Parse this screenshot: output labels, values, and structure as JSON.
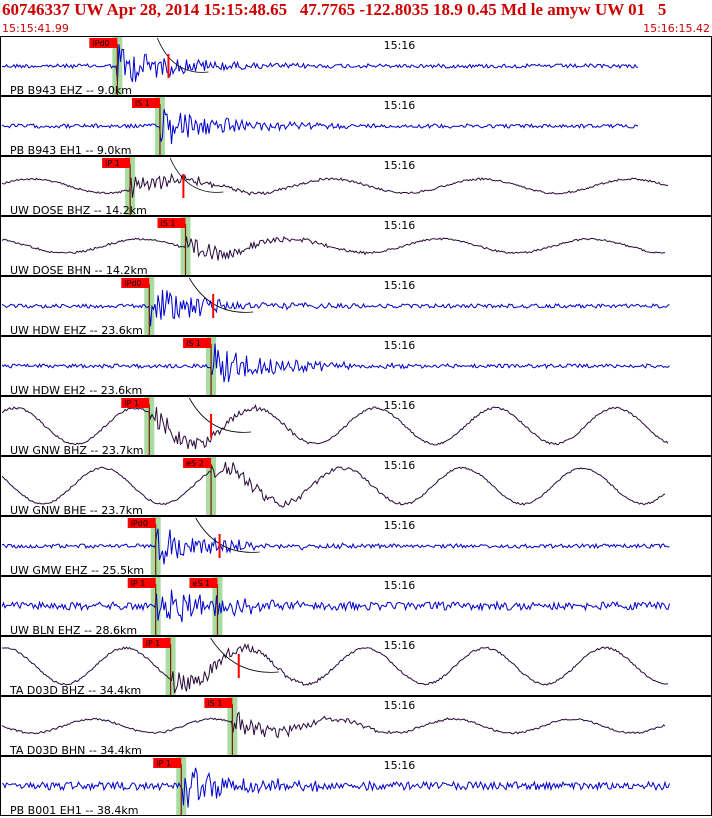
{
  "header": {
    "title": "60746337 UW Apr 28, 2014 15:15:48.65   47.7765 -122.8035 18.9 0.45 Md le amyw UW 01   5",
    "start_time": "15:15:41.99",
    "end_time": "15:16:15.42"
  },
  "colors": {
    "header_text": "#cc0000",
    "trace_blue": "#0000cc",
    "trace_dark": "#2a0a3a",
    "pick_flag": "#ff0000",
    "pick_band": "#a8dca0",
    "border": "#000000",
    "theoretical_curve": "#000000"
  },
  "chart_data": {
    "type": "line",
    "minute_label": "15:16",
    "traces": [
      {
        "station": "PB B943 EHZ -- 9.0km",
        "distance_km": 9.0,
        "color": "blue",
        "style": "noise",
        "picks": [
          {
            "label": "iPd0",
            "time": 47.5
          },
          {
            "label": "",
            "time": 49.9
          }
        ]
      },
      {
        "station": "PB B943 EH1 -- 9.0km",
        "distance_km": 9.0,
        "color": "blue",
        "style": "noise",
        "picks": [
          {
            "label": "iS 1",
            "time": 49.5
          }
        ]
      },
      {
        "station": "UW DOSE BHZ -- 14.2km",
        "distance_km": 14.2,
        "color": "dark",
        "style": "wave",
        "picks": [
          {
            "label": "iP 1",
            "time": 48.1
          },
          {
            "label": "",
            "time": 50.6
          }
        ]
      },
      {
        "station": "UW DOSE BHN -- 14.2km",
        "distance_km": 14.2,
        "color": "dark",
        "style": "wave",
        "picks": [
          {
            "label": "iS 1",
            "time": 50.7
          }
        ]
      },
      {
        "station": "UW HDW EHZ -- 23.6km",
        "distance_km": 23.6,
        "color": "blue",
        "style": "noise",
        "picks": [
          {
            "label": "iPd0",
            "time": 49.0
          },
          {
            "label": "",
            "time": 52.0
          }
        ]
      },
      {
        "station": "UW HDW EH2 -- 23.6km",
        "distance_km": 23.6,
        "color": "blue",
        "style": "noise",
        "picks": [
          {
            "label": "iS 1",
            "time": 51.9
          }
        ]
      },
      {
        "station": "UW GNW BHZ -- 23.7km",
        "distance_km": 23.7,
        "color": "dark",
        "style": "wave",
        "picks": [
          {
            "label": "iP 1",
            "time": 49.0
          },
          {
            "label": "",
            "time": 51.9
          }
        ]
      },
      {
        "station": "UW GNW BHE -- 23.7km",
        "distance_km": 23.7,
        "color": "dark",
        "style": "wave",
        "picks": [
          {
            "label": "eS 2",
            "time": 51.9
          }
        ]
      },
      {
        "station": "UW GMW EHZ -- 25.5km",
        "distance_km": 25.5,
        "color": "blue",
        "style": "noise",
        "picks": [
          {
            "label": "iPd0",
            "time": 49.3
          },
          {
            "label": "",
            "time": 52.3
          }
        ]
      },
      {
        "station": "UW BLN EHZ -- 28.6km",
        "distance_km": 28.6,
        "color": "blue",
        "style": "noise",
        "picks": [
          {
            "label": "iP 1",
            "time": 49.3
          },
          {
            "label": "eS 1",
            "time": 52.2
          }
        ]
      },
      {
        "station": "TA D03D BHZ -- 34.4km",
        "distance_km": 34.4,
        "color": "dark",
        "style": "wave",
        "picks": [
          {
            "label": "iP 1",
            "time": 50.0
          },
          {
            "label": "",
            "time": 53.2
          }
        ]
      },
      {
        "station": "TA D03D BHN -- 34.4km",
        "distance_km": 34.4,
        "color": "dark",
        "style": "wave",
        "picks": [
          {
            "label": "iS 1",
            "time": 52.9
          }
        ]
      },
      {
        "station": "PB B001 EH1 -- 38.4km",
        "distance_km": 38.4,
        "color": "blue",
        "style": "noise",
        "picks": [
          {
            "label": "iP 1",
            "time": 50.5
          }
        ]
      }
    ]
  }
}
